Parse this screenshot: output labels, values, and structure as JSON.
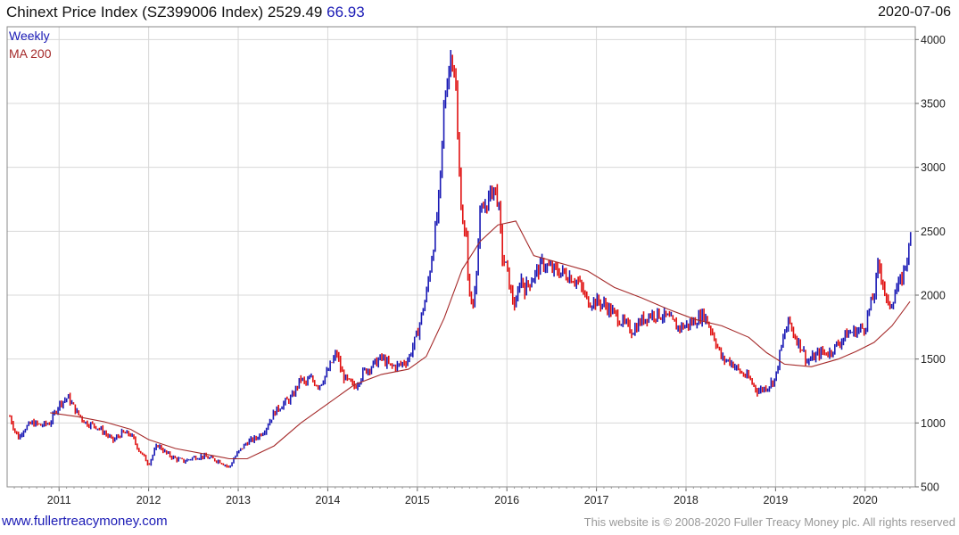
{
  "header": {
    "title": "Chinext Price Index (SZ399006 Index) 2529.49",
    "change": "66.93",
    "date": "2020-07-06"
  },
  "footer": {
    "site": "www.fullertreacymoney.com",
    "copyright": "This website is © 2008-2020 Fuller Treacy Money plc. All rights reserved"
  },
  "colors": {
    "up": "#1a1ab5",
    "down": "#e01010",
    "ma": "#a52a2a",
    "grid": "#d8d8d8"
  },
  "chart_data": {
    "type": "line",
    "style": "weekly price bars (blue = up week, red = down week) with moving average",
    "title": "Chinext Price Index (SZ399006 Index) 2529.49 66.93",
    "legend": [
      "Weekly",
      "MA 200"
    ],
    "legend_position": "top-left",
    "y_axis_side": "right",
    "ylim": [
      500,
      4100
    ],
    "yticks": [
      500,
      1000,
      1500,
      2000,
      2500,
      3000,
      3500,
      4000
    ],
    "xlim": [
      2010.42,
      2020.56
    ],
    "xticks": [
      "2011",
      "2012",
      "2013",
      "2014",
      "2015",
      "2016",
      "2017",
      "2018",
      "2019",
      "2020"
    ],
    "grid": true,
    "series": [
      {
        "name": "Weekly",
        "x": [
          2010.45,
          2010.5,
          2010.55,
          2010.6,
          2010.7,
          2010.8,
          2010.9,
          2011.0,
          2011.1,
          2011.2,
          2011.3,
          2011.4,
          2011.5,
          2011.6,
          2011.7,
          2011.8,
          2011.9,
          2012.0,
          2012.1,
          2012.2,
          2012.3,
          2012.4,
          2012.5,
          2012.6,
          2012.7,
          2012.8,
          2012.9,
          2012.95,
          2013.0,
          2013.1,
          2013.2,
          2013.3,
          2013.4,
          2013.5,
          2013.6,
          2013.7,
          2013.75,
          2013.8,
          2013.9,
          2014.0,
          2014.05,
          2014.1,
          2014.15,
          2014.2,
          2014.3,
          2014.4,
          2014.5,
          2014.6,
          2014.7,
          2014.8,
          2014.9,
          2014.95,
          2015.0,
          2015.1,
          2015.2,
          2015.25,
          2015.3,
          2015.35,
          2015.4,
          2015.43,
          2015.45,
          2015.48,
          2015.52,
          2015.55,
          2015.58,
          2015.62,
          2015.67,
          2015.7,
          2015.75,
          2015.8,
          2015.85,
          2015.9,
          2015.95,
          2016.0,
          2016.05,
          2016.1,
          2016.15,
          2016.2,
          2016.3,
          2016.4,
          2016.5,
          2016.6,
          2016.7,
          2016.8,
          2016.9,
          2017.0,
          2017.1,
          2017.2,
          2017.3,
          2017.4,
          2017.5,
          2017.6,
          2017.7,
          2017.8,
          2017.9,
          2018.0,
          2018.1,
          2018.2,
          2018.3,
          2018.4,
          2018.5,
          2018.6,
          2018.7,
          2018.8,
          2018.9,
          2019.0,
          2019.05,
          2019.1,
          2019.15,
          2019.2,
          2019.3,
          2019.35,
          2019.4,
          2019.5,
          2019.6,
          2019.7,
          2019.8,
          2019.9,
          2020.0,
          2020.05,
          2020.1,
          2020.15,
          2020.2,
          2020.25,
          2020.3,
          2020.35,
          2020.4,
          2020.45,
          2020.5,
          2020.52
        ],
        "values": [
          1050,
          950,
          880,
          950,
          1000,
          980,
          1000,
          1150,
          1200,
          1080,
          1000,
          980,
          930,
          860,
          920,
          910,
          780,
          680,
          830,
          760,
          720,
          700,
          730,
          740,
          720,
          700,
          650,
          720,
          770,
          850,
          880,
          950,
          1080,
          1150,
          1200,
          1350,
          1300,
          1350,
          1290,
          1400,
          1480,
          1550,
          1400,
          1340,
          1280,
          1400,
          1450,
          1510,
          1440,
          1450,
          1500,
          1600,
          1700,
          2000,
          2500,
          2800,
          3500,
          3800,
          3900,
          3600,
          3200,
          2800,
          2500,
          2400,
          2000,
          1900,
          2300,
          2600,
          2700,
          2750,
          2850,
          2750,
          2300,
          2200,
          2000,
          1900,
          2150,
          2050,
          2150,
          2250,
          2200,
          2180,
          2150,
          2100,
          1950,
          1950,
          1920,
          1850,
          1780,
          1720,
          1800,
          1850,
          1850,
          1820,
          1750,
          1760,
          1800,
          1850,
          1700,
          1500,
          1480,
          1400,
          1350,
          1250,
          1280,
          1350,
          1550,
          1700,
          1800,
          1700,
          1580,
          1480,
          1500,
          1550,
          1550,
          1620,
          1700,
          1720,
          1750,
          1900,
          2000,
          2250,
          2100,
          1900,
          1950,
          2050,
          2100,
          2250,
          2380,
          2530
        ]
      },
      {
        "name": "MA 200",
        "x": [
          2010.9,
          2011.2,
          2011.5,
          2011.8,
          2012.0,
          2012.3,
          2012.6,
          2012.9,
          2013.1,
          2013.4,
          2013.7,
          2014.0,
          2014.3,
          2014.6,
          2014.9,
          2015.1,
          2015.3,
          2015.5,
          2015.7,
          2015.9,
          2016.1,
          2016.3,
          2016.6,
          2016.9,
          2017.2,
          2017.5,
          2017.8,
          2018.1,
          2018.4,
          2018.7,
          2018.9,
          2019.1,
          2019.4,
          2019.7,
          2019.9,
          2020.1,
          2020.3,
          2020.5
        ],
        "values": [
          1080,
          1050,
          1010,
          950,
          870,
          800,
          760,
          720,
          720,
          820,
          1000,
          1150,
          1300,
          1380,
          1420,
          1520,
          1820,
          2200,
          2420,
          2550,
          2580,
          2310,
          2250,
          2190,
          2060,
          1980,
          1890,
          1810,
          1760,
          1670,
          1550,
          1460,
          1440,
          1500,
          1560,
          1630,
          1760,
          1950
        ]
      }
    ]
  }
}
